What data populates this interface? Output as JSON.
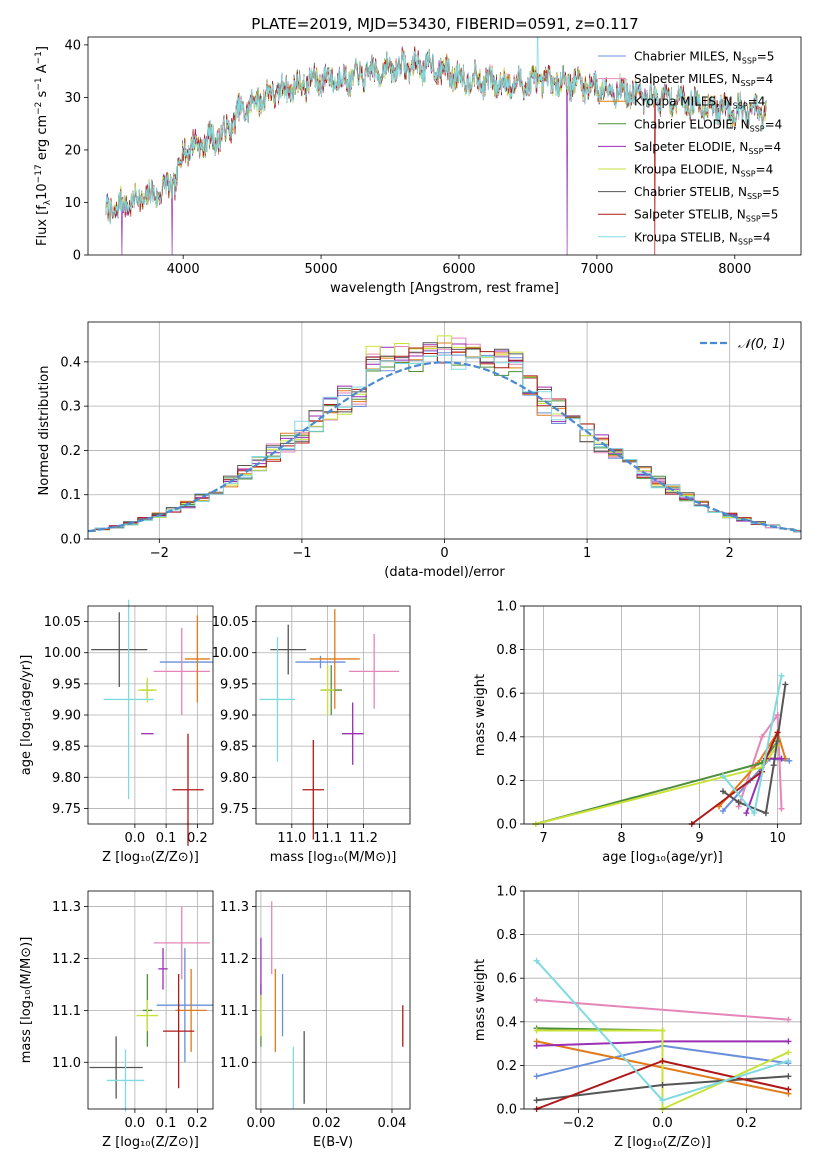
{
  "figure": {
    "title": "PLATE=2019, MJD=53430, FIBERID=0591, z=0.117"
  },
  "models": [
    {
      "name": "Chabrier MILES",
      "nssp": "5",
      "color": "#6a8fdc"
    },
    {
      "name": "Salpeter MILES",
      "nssp": "4",
      "color": "#e486b8"
    },
    {
      "name": "Kroupa MILES",
      "nssp": "4",
      "color": "#e07b1a"
    },
    {
      "name": "Chabrier ELODIE",
      "nssp": "4",
      "color": "#4f8f3a"
    },
    {
      "name": "Salpeter ELODIE",
      "nssp": "4",
      "color": "#9a2fb5"
    },
    {
      "name": "Kroupa ELODIE",
      "nssp": "4",
      "color": "#c9e23a"
    },
    {
      "name": "Chabrier STELIB",
      "nssp": "5",
      "color": "#555555"
    },
    {
      "name": "Salpeter STELIB",
      "nssp": "5",
      "color": "#b01818"
    },
    {
      "name": "Kroupa STELIB",
      "nssp": "4",
      "color": "#7fdbe0"
    }
  ],
  "chart_data": [
    {
      "id": "spectrum",
      "type": "line",
      "xlabel": "wavelength [Angstrom, rest frame]",
      "ylabel": "Flux [f_λ 10^-17 erg cm^-2 s^-1 A^-1]",
      "xlim": [
        3310,
        8480
      ],
      "ylim": [
        0,
        41.5
      ],
      "xticks": [
        4000,
        5000,
        6000,
        7000,
        8000
      ],
      "yticks": [
        0,
        10,
        20,
        30,
        40
      ],
      "x_range": [
        3440,
        8230
      ],
      "continuum_points": [
        [
          3440,
          8
        ],
        [
          3600,
          10
        ],
        [
          3800,
          11.5
        ],
        [
          3950,
          14
        ],
        [
          4000,
          20
        ],
        [
          4200,
          22
        ],
        [
          4300,
          23
        ],
        [
          4400,
          27
        ],
        [
          4600,
          30.5
        ],
        [
          4800,
          32
        ],
        [
          5000,
          33.5
        ],
        [
          5200,
          33.5
        ],
        [
          5400,
          35
        ],
        [
          5600,
          36
        ],
        [
          5800,
          36
        ],
        [
          6000,
          34
        ],
        [
          6200,
          33
        ],
        [
          6400,
          32.5
        ],
        [
          6600,
          33
        ],
        [
          6800,
          33
        ],
        [
          7000,
          32
        ],
        [
          7200,
          31
        ],
        [
          7400,
          30
        ],
        [
          7600,
          29.5
        ],
        [
          7800,
          28.5
        ],
        [
          8000,
          27.5
        ],
        [
          8230,
          27
        ]
      ],
      "drops": [
        [
          3555,
          4,
          0
        ],
        [
          3920,
          4,
          0
        ],
        [
          6785,
          4,
          0
        ],
        [
          7420,
          7,
          0
        ]
      ],
      "spikes": [
        [
          6570,
          8,
          41.5
        ]
      ]
    },
    {
      "id": "residuals",
      "type": "histogram",
      "xlabel": "(data-model)/error",
      "ylabel": "Normed distribution",
      "xlim": [
        -2.5,
        2.5
      ],
      "ylim": [
        0,
        0.49
      ],
      "xticks": [
        -2,
        -1,
        0,
        1,
        2
      ],
      "yticks": [
        0.0,
        0.1,
        0.2,
        0.3,
        0.4
      ],
      "bin_width": 0.1,
      "reference_label": "𝒩(0, 1)",
      "reference_color": "#4a8ad0",
      "peak_values": [
        0.43,
        0.455,
        0.44,
        0.41,
        0.445,
        0.46,
        0.45,
        0.43,
        0.42
      ]
    },
    {
      "id": "age_vs_Z",
      "type": "errorbar",
      "xlabel": "Z [log₁₀(Z/Z⊙)]",
      "ylabel": "age  [log₁₀(age/yr)]",
      "xlim": [
        -0.15,
        0.25
      ],
      "ylim": [
        9.725,
        10.075
      ],
      "xticks": [
        0.0,
        0.1,
        0.2
      ],
      "xticklabels": [
        "0.0",
        "0.1",
        "0.2"
      ],
      "yticks": [
        9.75,
        9.8,
        9.85,
        9.9,
        9.95,
        10.0,
        10.05
      ],
      "points": [
        {
          "m": 0,
          "x": 0.165,
          "xe": 0.085,
          "y": 9.985,
          "ye": 0.0
        },
        {
          "m": 1,
          "x": 0.15,
          "xe": 0.09,
          "y": 9.97,
          "ye": 0.07
        },
        {
          "m": 2,
          "x": 0.2,
          "xe": 0.04,
          "y": 9.99,
          "ye": 0.07
        },
        {
          "m": 3,
          "x": 0.04,
          "xe": 0.02,
          "y": 9.94,
          "ye": 0.015
        },
        {
          "m": 4,
          "x": 0.04,
          "xe": 0.02,
          "y": 9.87,
          "ye": 0.0
        },
        {
          "m": 5,
          "x": 0.04,
          "xe": 0.03,
          "y": 9.94,
          "ye": 0.02
        },
        {
          "m": 6,
          "x": -0.05,
          "xe": 0.09,
          "y": 10.005,
          "ye": 0.06
        },
        {
          "m": 7,
          "x": 0.17,
          "xe": 0.05,
          "y": 9.78,
          "ye": 0.09
        },
        {
          "m": 8,
          "x": -0.02,
          "xe": 0.08,
          "y": 9.925,
          "ye": 0.16
        }
      ]
    },
    {
      "id": "age_vs_mass",
      "type": "errorbar",
      "xlabel": "mass [log₁₀(M/M⊙)]",
      "ylabel": "",
      "xlim": [
        10.9,
        11.33
      ],
      "ylim": [
        9.725,
        10.075
      ],
      "xticks": [
        11.0,
        11.1,
        11.2
      ],
      "xticklabels": [
        "11.0",
        "11.1",
        "11.2"
      ],
      "yticks": [
        9.75,
        9.8,
        9.85,
        9.9,
        9.95,
        10.0,
        10.05
      ],
      "points": [
        {
          "m": 0,
          "x": 11.08,
          "xe": 0.07,
          "y": 9.985,
          "ye": 0.01
        },
        {
          "m": 1,
          "x": 11.23,
          "xe": 0.07,
          "y": 9.97,
          "ye": 0.06
        },
        {
          "m": 2,
          "x": 11.12,
          "xe": 0.07,
          "y": 9.99,
          "ye": 0.08
        },
        {
          "m": 3,
          "x": 11.11,
          "xe": 0.03,
          "y": 9.94,
          "ye": 0.04
        },
        {
          "m": 4,
          "x": 11.17,
          "xe": 0.03,
          "y": 9.87,
          "ye": 0.05
        },
        {
          "m": 5,
          "x": 11.1,
          "xe": 0.02,
          "y": 9.94,
          "ye": 0.04
        },
        {
          "m": 6,
          "x": 10.99,
          "xe": 0.05,
          "y": 10.005,
          "ye": 0.04
        },
        {
          "m": 7,
          "x": 11.06,
          "xe": 0.03,
          "y": 9.78,
          "ye": 0.08
        },
        {
          "m": 8,
          "x": 10.96,
          "xe": 0.05,
          "y": 9.925,
          "ye": 0.1
        }
      ]
    },
    {
      "id": "weight_vs_age",
      "type": "line",
      "xlabel": "age  [log₁₀(age/yr)]",
      "ylabel": "mass weight",
      "xlim": [
        6.75,
        10.3
      ],
      "ylim": [
        0,
        1.0
      ],
      "xticks": [
        7,
        8,
        9,
        10
      ],
      "xticklabels": [
        "7",
        "8",
        "9",
        "10"
      ],
      "yticks": [
        0.0,
        0.2,
        0.4,
        0.6,
        0.8,
        1.0
      ],
      "series": [
        {
          "m": 0,
          "points": [
            [
              9.3,
              0.06
            ],
            [
              9.65,
              0.2
            ],
            [
              9.9,
              0.3
            ],
            [
              10.15,
              0.29
            ]
          ]
        },
        {
          "m": 1,
          "points": [
            [
              9.5,
              0.08
            ],
            [
              9.8,
              0.4
            ],
            [
              10.0,
              0.5
            ],
            [
              10.05,
              0.07
            ]
          ]
        },
        {
          "m": 2,
          "points": [
            [
              9.25,
              0.08
            ],
            [
              9.75,
              0.28
            ],
            [
              10.0,
              0.42
            ],
            [
              10.1,
              0.3
            ]
          ]
        },
        {
          "m": 3,
          "points": [
            [
              6.9,
              0.0
            ],
            [
              9.8,
              0.28
            ],
            [
              10.0,
              0.38
            ]
          ]
        },
        {
          "m": 4,
          "points": [
            [
              9.6,
              0.05
            ],
            [
              9.85,
              0.3
            ],
            [
              10.05,
              0.3
            ]
          ]
        },
        {
          "m": 5,
          "points": [
            [
              6.9,
              0.0
            ],
            [
              9.8,
              0.26
            ],
            [
              10.0,
              0.36
            ]
          ]
        },
        {
          "m": 6,
          "points": [
            [
              9.3,
              0.15
            ],
            [
              9.5,
              0.1
            ],
            [
              9.85,
              0.05
            ],
            [
              9.95,
              0.27
            ],
            [
              10.1,
              0.64
            ]
          ]
        },
        {
          "m": 7,
          "points": [
            [
              8.9,
              0.0
            ],
            [
              9.8,
              0.24
            ],
            [
              9.85,
              0.3
            ],
            [
              10.0,
              0.42
            ]
          ]
        },
        {
          "m": 8,
          "points": [
            [
              9.3,
              0.22
            ],
            [
              9.7,
              0.05
            ],
            [
              10.05,
              0.68
            ]
          ]
        }
      ]
    },
    {
      "id": "mass_vs_Z",
      "type": "errorbar",
      "xlabel": "Z [log₁₀(Z/Z⊙)]",
      "ylabel": "mass [log₁₀(M/M⊙)]",
      "xlim": [
        -0.15,
        0.25
      ],
      "ylim": [
        10.91,
        11.33
      ],
      "xticks": [
        0.0,
        0.1,
        0.2
      ],
      "xticklabels": [
        "0.0",
        "0.1",
        "0.2"
      ],
      "yticks": [
        11.0,
        11.1,
        11.2,
        11.3
      ],
      "points": [
        {
          "m": 0,
          "x": 0.16,
          "xe": 0.09,
          "y": 11.11,
          "ye": 0.11
        },
        {
          "m": 1,
          "x": 0.15,
          "xe": 0.09,
          "y": 11.23,
          "ye": 0.07
        },
        {
          "m": 2,
          "x": 0.18,
          "xe": 0.05,
          "y": 11.1,
          "ye": 0.08
        },
        {
          "m": 3,
          "x": 0.04,
          "xe": 0.015,
          "y": 11.1,
          "ye": 0.07
        },
        {
          "m": 4,
          "x": 0.09,
          "xe": 0.015,
          "y": 11.18,
          "ye": 0.04
        },
        {
          "m": 5,
          "x": 0.04,
          "xe": 0.035,
          "y": 11.09,
          "ye": 0.03
        },
        {
          "m": 6,
          "x": -0.06,
          "xe": 0.085,
          "y": 10.99,
          "ye": 0.06
        },
        {
          "m": 7,
          "x": 0.14,
          "xe": 0.05,
          "y": 11.06,
          "ye": 0.11
        },
        {
          "m": 8,
          "x": -0.03,
          "xe": 0.06,
          "y": 10.965,
          "ye": 0.06
        }
      ]
    },
    {
      "id": "mass_vs_ebv",
      "type": "errorbar",
      "xlabel": "E(B-V)",
      "ylabel": "",
      "xlim": [
        -0.0015,
        0.0455
      ],
      "ylim": [
        10.91,
        11.33
      ],
      "xticks": [
        0.0,
        0.02,
        0.04
      ],
      "xticklabels": [
        "0.00",
        "0.02",
        "0.04"
      ],
      "yticks": [
        11.0,
        11.1,
        11.2,
        11.3
      ],
      "points": [
        {
          "m": 0,
          "x": 0.0066,
          "xe": 0.0,
          "y": 11.11,
          "ye": 0.06
        },
        {
          "m": 1,
          "x": 0.0033,
          "xe": 0.0,
          "y": 11.24,
          "ye": 0.07
        },
        {
          "m": 2,
          "x": 0.0044,
          "xe": 0.0,
          "y": 11.1,
          "ye": 0.08
        },
        {
          "m": 3,
          "x": 0.0,
          "xe": 0.0,
          "y": 11.09,
          "ye": 0.06
        },
        {
          "m": 4,
          "x": 0.0,
          "xe": 0.0,
          "y": 11.18,
          "ye": 0.06
        },
        {
          "m": 5,
          "x": 0.0,
          "xe": 0.0,
          "y": 11.09,
          "ye": 0.04
        },
        {
          "m": 6,
          "x": 0.0132,
          "xe": 0.0,
          "y": 10.99,
          "ye": 0.07
        },
        {
          "m": 7,
          "x": 0.0433,
          "xe": 0.0,
          "y": 11.07,
          "ye": 0.04
        },
        {
          "m": 8,
          "x": 0.0099,
          "xe": 0.0,
          "y": 10.97,
          "ye": 0.06
        }
      ]
    },
    {
      "id": "weight_vs_Z",
      "type": "line",
      "xlabel": "Z [log₁₀(Z/Z⊙)]",
      "ylabel": "mass weight",
      "xlim": [
        -0.33,
        0.33
      ],
      "ylim": [
        0,
        1.0
      ],
      "xticks": [
        -0.2,
        0.0,
        0.2
      ],
      "xticklabels": [
        "−0.2",
        "0.0",
        "0.2"
      ],
      "yticks": [
        0.0,
        0.2,
        0.4,
        0.6,
        0.8,
        1.0
      ],
      "series": [
        {
          "m": 0,
          "points": [
            [
              -0.3,
              0.15
            ],
            [
              0.0,
              0.29
            ],
            [
              0.3,
              0.21
            ]
          ]
        },
        {
          "m": 1,
          "points": [
            [
              -0.3,
              0.5
            ],
            [
              0.3,
              0.41
            ]
          ]
        },
        {
          "m": 2,
          "points": [
            [
              -0.3,
              0.31
            ],
            [
              0.3,
              0.07
            ]
          ]
        },
        {
          "m": 3,
          "points": [
            [
              -0.3,
              0.37
            ],
            [
              0.0,
              0.36
            ]
          ]
        },
        {
          "m": 4,
          "points": [
            [
              -0.3,
              0.29
            ],
            [
              0.0,
              0.31
            ],
            [
              0.3,
              0.31
            ]
          ]
        },
        {
          "m": 5,
          "points": [
            [
              -0.3,
              0.36
            ],
            [
              0.0,
              0.36
            ],
            [
              0.0,
              0.0
            ],
            [
              0.3,
              0.26
            ]
          ]
        },
        {
          "m": 6,
          "points": [
            [
              -0.3,
              0.04
            ],
            [
              0.0,
              0.11
            ],
            [
              0.3,
              0.15
            ]
          ]
        },
        {
          "m": 7,
          "points": [
            [
              -0.3,
              0.0
            ],
            [
              0.0,
              0.22
            ],
            [
              0.3,
              0.09
            ]
          ]
        },
        {
          "m": 8,
          "points": [
            [
              -0.3,
              0.68
            ],
            [
              0.0,
              0.04
            ],
            [
              0.3,
              0.22
            ]
          ]
        }
      ]
    }
  ]
}
